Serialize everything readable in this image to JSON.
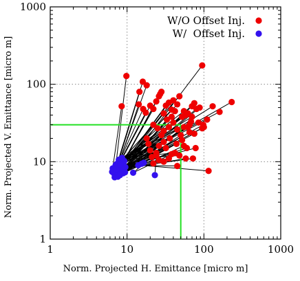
{
  "chart_data": {
    "type": "scatter",
    "x_scale": "log",
    "y_scale": "log",
    "xlim": [
      1,
      1000
    ],
    "ylim": [
      1,
      1000
    ],
    "xlabel": "Norm. Projected H. Emittance [micro m]",
    "ylabel": "Norm. Projected V. Emittance [micro m]",
    "x_ticks": [
      "1",
      "10",
      "100",
      "1000"
    ],
    "y_ticks": [
      "1",
      "10",
      "100",
      "1000"
    ],
    "grid": true,
    "legend_position": "top-right",
    "threshold": {
      "x": 50,
      "y": 30,
      "color": "#22e022"
    },
    "series": [
      {
        "name": "W/O Offset Inj.",
        "color": "#ee0000",
        "points": [
          [
            8.5,
            52
          ],
          [
            9.8,
            128
          ],
          [
            14.5,
            80
          ],
          [
            16,
            108
          ],
          [
            18,
            97
          ],
          [
            14.2,
            55
          ],
          [
            16.2,
            48
          ],
          [
            17.5,
            43
          ],
          [
            20,
            53
          ],
          [
            22,
            48
          ],
          [
            24,
            60
          ],
          [
            26,
            70
          ],
          [
            27,
            75
          ],
          [
            28,
            80
          ],
          [
            30,
            42
          ],
          [
            32,
            53
          ],
          [
            35,
            58
          ],
          [
            38,
            47
          ],
          [
            40,
            62
          ],
          [
            45,
            55
          ],
          [
            48,
            70
          ],
          [
            52,
            38
          ],
          [
            55,
            45
          ],
          [
            58,
            40
          ],
          [
            62,
            42
          ],
          [
            65,
            30
          ],
          [
            70,
            52
          ],
          [
            75,
            57
          ],
          [
            80,
            48
          ],
          [
            88,
            50
          ],
          [
            95,
            175
          ],
          [
            50,
            22
          ],
          [
            52,
            19
          ],
          [
            55,
            16
          ],
          [
            60,
            15
          ],
          [
            48,
            12
          ],
          [
            42,
            13
          ],
          [
            38,
            12.5
          ],
          [
            35,
            11
          ],
          [
            30,
            10
          ],
          [
            26,
            10.5
          ],
          [
            24,
            12
          ],
          [
            22,
            9.5
          ],
          [
            20,
            14
          ],
          [
            19,
            17
          ],
          [
            18,
            20
          ],
          [
            22,
            30
          ],
          [
            25,
            27
          ],
          [
            30,
            25
          ],
          [
            35,
            28
          ],
          [
            40,
            32
          ],
          [
            45,
            26
          ],
          [
            62,
            28
          ],
          [
            65,
            24
          ],
          [
            75,
            23
          ],
          [
            95,
            27
          ],
          [
            98,
            30
          ],
          [
            58,
            11
          ],
          [
            72,
            11
          ],
          [
            78,
            15
          ],
          [
            45,
            8.8
          ],
          [
            115,
            7.6
          ],
          [
            130,
            52
          ],
          [
            160,
            44
          ],
          [
            230,
            59
          ],
          [
            110,
            35
          ],
          [
            85,
            32
          ],
          [
            70,
            38
          ],
          [
            68,
            33
          ],
          [
            100,
            28
          ],
          [
            30,
            18
          ],
          [
            28,
            22
          ],
          [
            33,
            35
          ],
          [
            38,
            38
          ],
          [
            42,
            45
          ],
          [
            55,
            28
          ],
          [
            44,
            17
          ],
          [
            36,
            20
          ],
          [
            32,
            15
          ],
          [
            26,
            16
          ],
          [
            24,
            13
          ],
          [
            21,
            11.5
          ]
        ]
      },
      {
        "name": "W/  Offset Inj.",
        "color": "#3311ee",
        "points": [
          [
            6.5,
            8.2
          ],
          [
            7,
            7.6
          ],
          [
            7.2,
            8.5
          ],
          [
            7.5,
            9
          ],
          [
            7.8,
            9.6
          ],
          [
            8,
            10.2
          ],
          [
            8.2,
            10.8
          ],
          [
            8.5,
            11
          ],
          [
            6.8,
            7
          ],
          [
            7,
            6.5
          ],
          [
            7.3,
            6.8
          ],
          [
            7.5,
            7.2
          ],
          [
            7.7,
            7.4
          ],
          [
            8,
            7.8
          ],
          [
            8.2,
            8.2
          ],
          [
            8.4,
            8.6
          ],
          [
            8.6,
            9
          ],
          [
            8.8,
            9.4
          ],
          [
            9,
            9.8
          ],
          [
            9.2,
            10.2
          ],
          [
            6.6,
            7.9
          ],
          [
            6.9,
            8.4
          ],
          [
            7.1,
            9.1
          ],
          [
            7.4,
            9.4
          ],
          [
            7.9,
            8.8
          ],
          [
            8.3,
            7.4
          ],
          [
            8.7,
            7.8
          ],
          [
            9.1,
            8.1
          ],
          [
            9.5,
            8.5
          ],
          [
            6.9,
            6.3
          ],
          [
            7.6,
            6.4
          ],
          [
            8.1,
            6.7
          ],
          [
            8.9,
            7.1
          ],
          [
            9.4,
            7.3
          ],
          [
            6.4,
            7.4
          ],
          [
            7.8,
            10.6
          ],
          [
            8.6,
            11.2
          ],
          [
            12,
            7.2
          ],
          [
            14,
            9
          ],
          [
            15.5,
            9.4
          ],
          [
            16.5,
            9.7
          ],
          [
            23,
            6.7
          ],
          [
            7.2,
            7.9
          ],
          [
            8.2,
            9.2
          ]
        ]
      }
    ]
  }
}
